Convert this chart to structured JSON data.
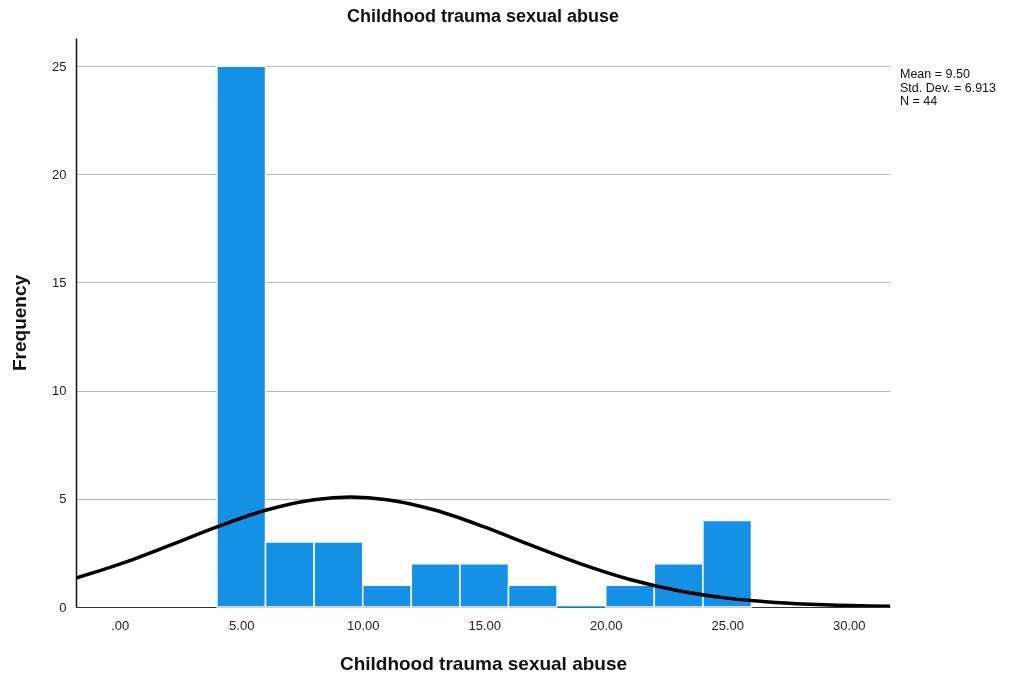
{
  "chart_data": {
    "type": "histogram",
    "title": "Childhood trauma sexual abuse",
    "xlabel": "Childhood trauma sexual abuse",
    "ylabel": "Frequency",
    "bins": [
      4,
      6,
      8,
      10,
      12,
      14,
      16,
      18,
      20,
      22,
      24,
      26
    ],
    "values": [
      25,
      3,
      3,
      1,
      2,
      2,
      1,
      0,
      1,
      2,
      4
    ],
    "color": "#1490e4",
    "series": [
      {
        "type": "line",
        "color": "#000000",
        "x": [
          -1.8,
          0,
          2,
          4,
          6,
          8,
          9.5,
          11,
          13,
          15,
          17,
          19,
          21,
          23,
          25,
          27,
          29,
          31.7
        ],
        "values": [
          1.34,
          1.98,
          2.82,
          3.7,
          4.47,
          4.96,
          5.08,
          4.96,
          4.47,
          3.7,
          2.82,
          1.98,
          1.27,
          0.75,
          0.41,
          0.21,
          0.1,
          0.03
        ]
      }
    ],
    "xlim": [
      -1.8,
      31.7
    ],
    "xticks": [
      {
        "value": 0,
        "label": ".00"
      },
      {
        "value": 5,
        "label": "5.00"
      },
      {
        "value": 10,
        "label": "10.00"
      },
      {
        "value": 15,
        "label": "15.00"
      },
      {
        "value": 20,
        "label": "20.00"
      },
      {
        "value": 25,
        "label": "25.00"
      },
      {
        "value": 30,
        "label": "30.00"
      }
    ],
    "ylim": [
      0,
      26.3
    ],
    "yticks": [
      0,
      5,
      10,
      15,
      20,
      25
    ],
    "grid": "y",
    "annotations": [
      "Mean = 9.50",
      "Std. Dev. = 6.913",
      "N = 44"
    ]
  }
}
